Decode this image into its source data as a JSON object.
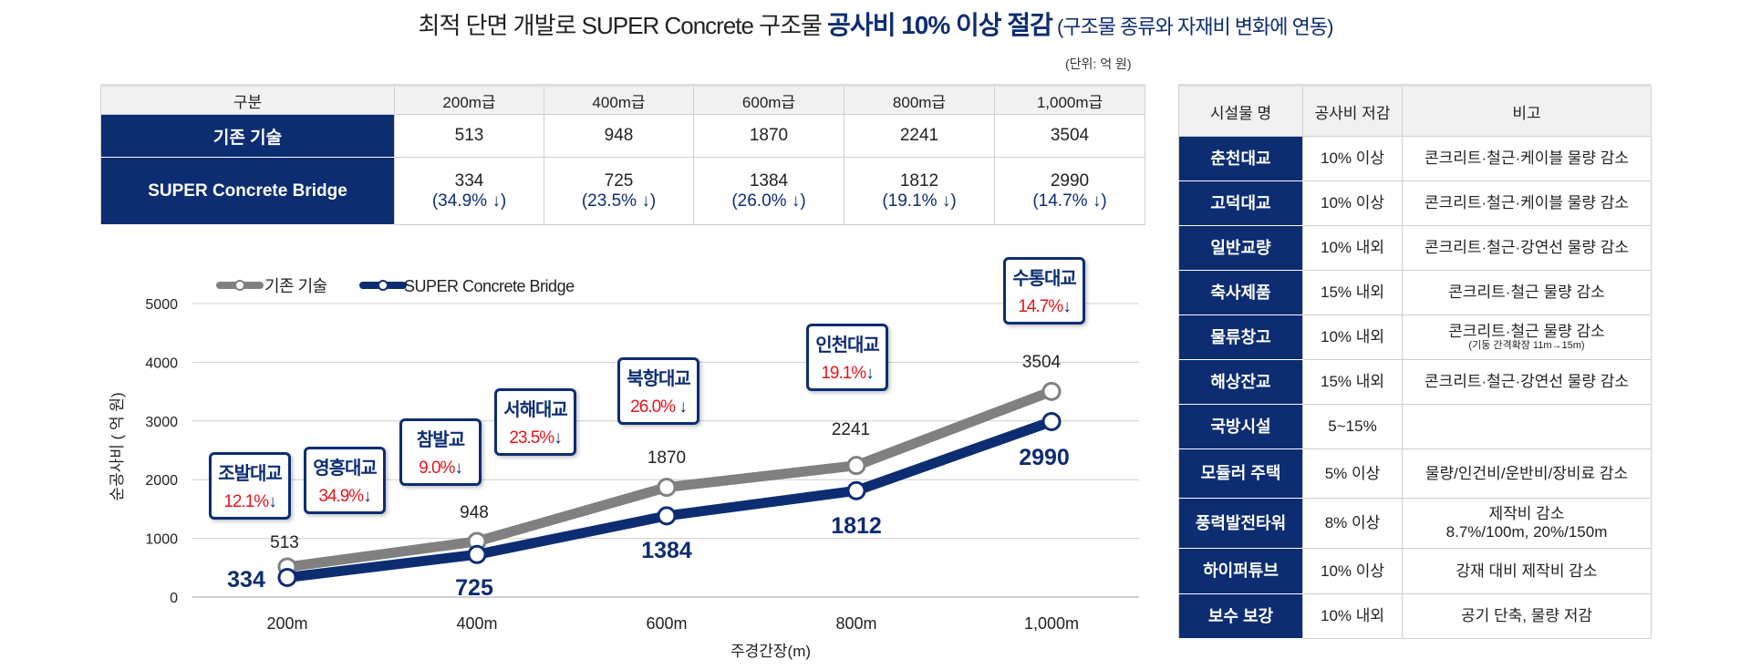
{
  "title": {
    "main": "최적 단면 개발로 SUPER Concrete 구조물 ",
    "highlight": "공사비 10% 이상 절감",
    "sub": " (구조물 종류와 자재비 변화에 연동)"
  },
  "unit": "(단위: 억 원)",
  "cost_table": {
    "headers": [
      "구분",
      "200m급",
      "400m급",
      "600m급",
      "800m급",
      "1,000m급"
    ],
    "rows": [
      {
        "label": "기존 기술",
        "values": [
          "513",
          "948",
          "1870",
          "2241",
          "3504"
        ]
      },
      {
        "label": "SUPER Concrete Bridge",
        "values": [
          "334",
          "725",
          "1384",
          "1812",
          "2990"
        ],
        "pcts": [
          "(34.9% ↓)",
          "(23.5% ↓)",
          "(26.0% ↓)",
          "(19.1% ↓)",
          "(14.7% ↓)"
        ]
      }
    ]
  },
  "facility_table": {
    "headers": [
      "시설물 명",
      "공사비 저감",
      "비고"
    ],
    "rows": [
      {
        "name": "춘천대교",
        "saving": "10% 이상",
        "note": "콘크리트·철근·케이블 물량 감소",
        "note2": ""
      },
      {
        "name": "고덕대교",
        "saving": "10% 이상",
        "note": "콘크리트·철근·케이블 물량 감소",
        "note2": ""
      },
      {
        "name": "일반교량",
        "saving": "10% 내외",
        "note": "콘크리트·철근·강연선 물량 감소",
        "note2": ""
      },
      {
        "name": "축사제품",
        "saving": "15% 내외",
        "note": "콘크리트·철근 물량 감소",
        "note2": ""
      },
      {
        "name": "물류창고",
        "saving": "10% 내외",
        "note": "콘크리트·철근 물량 감소",
        "note2": "(기둥 간격확장 11m→15m)"
      },
      {
        "name": "해상잔교",
        "saving": "15% 내외",
        "note": "콘크리트·철근·강연선 물량 감소",
        "note2": ""
      },
      {
        "name": "국방시설",
        "saving": "5~15%",
        "note": "",
        "note2": ""
      },
      {
        "name": "모듈러 주택",
        "saving": "5% 이상",
        "note": "물량/인건비/운반비/장비료 감소",
        "note2": ""
      },
      {
        "name": "풍력발전타워",
        "saving": "8% 이상",
        "note": "제작비 감소",
        "note2": "8.7%/100m, 20%/150m"
      },
      {
        "name": "하이퍼튜브",
        "saving": "10% 이상",
        "note": "강재 대비 제작비 감소",
        "note2": ""
      },
      {
        "name": "보수 보강",
        "saving": "10% 내외",
        "note": "공기 단축, 물량 저감",
        "note2": ""
      }
    ]
  },
  "chart_data": {
    "type": "line",
    "categories": [
      "200m",
      "400m",
      "600m",
      "800m",
      "1,000m"
    ],
    "series": [
      {
        "name": "기존 기술",
        "values": [
          513,
          948,
          1870,
          2241,
          3504
        ],
        "color": "#808080"
      },
      {
        "name": "SUPER Concrete Bridge",
        "values": [
          334,
          725,
          1384,
          1812,
          2990
        ],
        "color": "#0d2d73"
      }
    ],
    "xlabel": "주경간장(m)",
    "ylabel": "순공사비 ( 억 원)",
    "ylim": [
      0,
      5000
    ],
    "yticks": [
      0,
      1000,
      2000,
      3000,
      4000,
      5000
    ],
    "grid": true,
    "legend": "top-left",
    "annotations": [
      {
        "name": "조발대교",
        "pct": "12.1%",
        "arrow": "↓"
      },
      {
        "name": "영흥대교",
        "pct": "34.9%",
        "arrow": "↓"
      },
      {
        "name": "참발교",
        "pct": "9.0%",
        "arrow": "↓"
      },
      {
        "name": "서해대교",
        "pct": "23.5%",
        "arrow": "↓"
      },
      {
        "name": "북항대교",
        "pct": "26.0% ",
        "arrow": "↓"
      },
      {
        "name": "인천대교",
        "pct": "19.1%",
        "arrow": "↓"
      },
      {
        "name": "수통대교",
        "pct": "14.7%",
        "arrow": "↓"
      }
    ],
    "accent_red": "#e8141b"
  }
}
